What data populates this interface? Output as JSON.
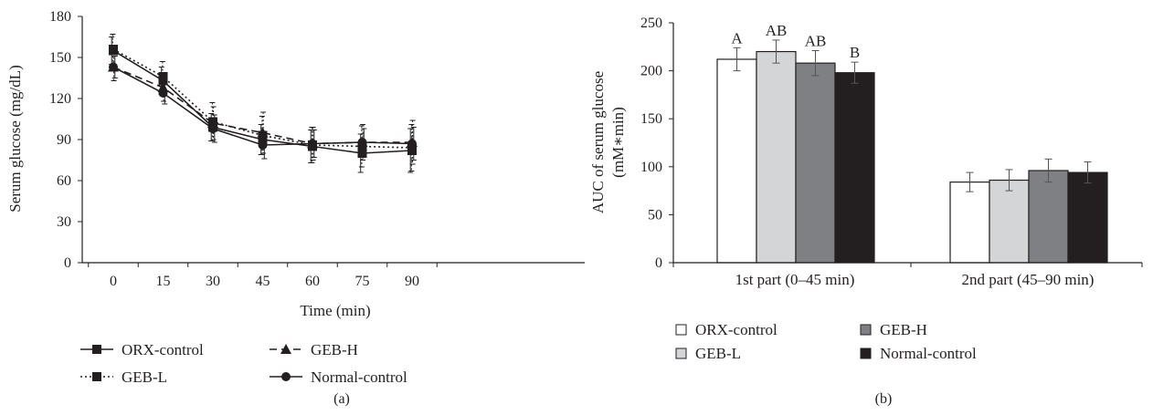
{
  "chart_data": [
    {
      "type": "line",
      "panel_label": "(a)",
      "xlabel": "Time (min)",
      "ylabel": "Serum glucose (mg/dL)",
      "x": [
        0,
        15,
        30,
        45,
        60,
        75,
        90
      ],
      "xlim": [
        0,
        90
      ],
      "ylim": [
        0,
        180
      ],
      "yticks": [
        0,
        30,
        60,
        90,
        120,
        150,
        180
      ],
      "grid": false,
      "legend_position": "bottom",
      "series": [
        {
          "name": "ORX-control",
          "line_style": "solid",
          "marker": "square",
          "values": [
            155,
            133,
            99,
            90,
            85,
            80,
            82
          ],
          "error": [
            10,
            10,
            10,
            11,
            12,
            14,
            16
          ]
        },
        {
          "name": "GEB-L",
          "line_style": "dotted",
          "marker": "square",
          "values": [
            156,
            136,
            103,
            93,
            86,
            85,
            84
          ],
          "error": [
            11,
            11,
            14,
            14,
            13,
            15,
            17
          ]
        },
        {
          "name": "GEB-H",
          "line_style": "dashed",
          "marker": "triangle",
          "values": [
            143,
            128,
            102,
            95,
            87,
            88,
            88
          ],
          "error": [
            10,
            10,
            12,
            15,
            12,
            13,
            16
          ]
        },
        {
          "name": "Normal-control",
          "line_style": "solid",
          "marker": "circle",
          "values": [
            143,
            124,
            98,
            86,
            87,
            88,
            87
          ],
          "error": [
            8,
            8,
            10,
            10,
            10,
            10,
            12
          ]
        }
      ]
    },
    {
      "type": "bar",
      "panel_label": "(b)",
      "ylabel_lines": [
        "AUC of serum glucose",
        "(mM∗min)"
      ],
      "categories": [
        "1st part (0–45 min)",
        "2nd part (45–90 min)"
      ],
      "ylim": [
        0,
        250
      ],
      "yticks": [
        0,
        50,
        100,
        150,
        200,
        250
      ],
      "grid": false,
      "legend_position": "bottom",
      "series": [
        {
          "name": "ORX-control",
          "color": "#ffffff",
          "values": [
            212,
            84
          ],
          "error": [
            12,
            10
          ],
          "letters": [
            "A",
            ""
          ]
        },
        {
          "name": "GEB-L",
          "color": "#d4d5d6",
          "values": [
            220,
            86
          ],
          "error": [
            12,
            11
          ],
          "letters": [
            "AB",
            ""
          ]
        },
        {
          "name": "GEB-H",
          "color": "#7f8083",
          "values": [
            208,
            96
          ],
          "error": [
            13,
            12
          ],
          "letters": [
            "AB",
            ""
          ]
        },
        {
          "name": "Normal-control",
          "color": "#231f20",
          "values": [
            198,
            94
          ],
          "error": [
            11,
            11
          ],
          "letters": [
            "B",
            ""
          ]
        }
      ]
    }
  ]
}
